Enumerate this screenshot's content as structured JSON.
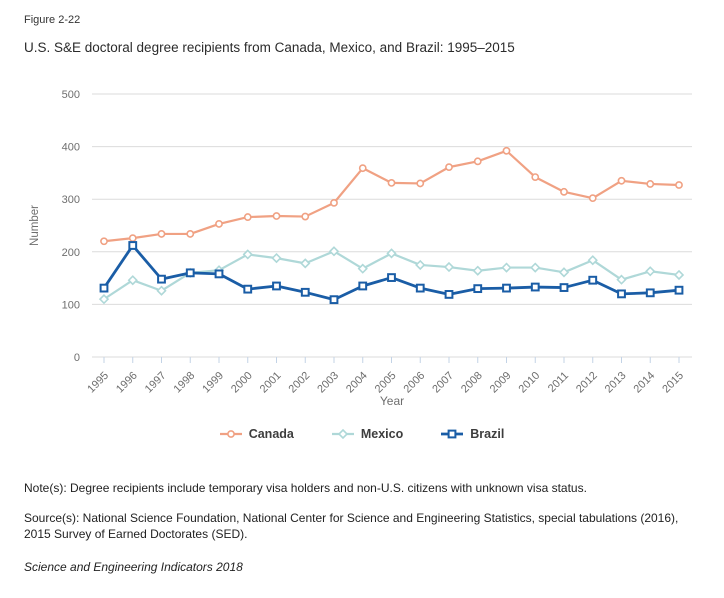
{
  "figure_label": "Figure 2-22",
  "title": "U.S. S&E doctoral degree recipients from Canada, Mexico, and Brazil: 1995–2015",
  "chart_data": {
    "type": "line",
    "x": [
      1995,
      1996,
      1997,
      1998,
      1999,
      2000,
      2001,
      2002,
      2003,
      2004,
      2005,
      2006,
      2007,
      2008,
      2009,
      2010,
      2011,
      2012,
      2013,
      2014,
      2015
    ],
    "series": [
      {
        "name": "Canada",
        "color": "#F0A183",
        "marker": "circle",
        "values": [
          220,
          226,
          234,
          234,
          253,
          266,
          268,
          267,
          293,
          359,
          331,
          330,
          361,
          372,
          392,
          342,
          314,
          302,
          335,
          329,
          327
        ]
      },
      {
        "name": "Mexico",
        "color": "#AFD8D8",
        "marker": "diamond",
        "values": [
          110,
          146,
          126,
          160,
          165,
          195,
          188,
          178,
          201,
          168,
          197,
          175,
          171,
          164,
          170,
          170,
          161,
          184,
          147,
          163,
          156
        ]
      },
      {
        "name": "Brazil",
        "color": "#1A5DA6",
        "marker": "square",
        "values": [
          131,
          212,
          148,
          160,
          158,
          129,
          135,
          123,
          109,
          135,
          151,
          131,
          119,
          130,
          131,
          133,
          132,
          146,
          120,
          122,
          127
        ]
      }
    ],
    "xlabel": "Year",
    "ylabel": "Number",
    "ylim": [
      0,
      500
    ],
    "yticks": [
      0,
      100,
      200,
      300,
      400,
      500
    ],
    "grid": true,
    "legend_position": "bottom"
  },
  "style_colors": {
    "gridline": "#DBDBDB",
    "axis_text": "#6E6E6E",
    "tick_mark": "#C3D3E6",
    "legend_text": "#3D3D3D"
  },
  "footer": {
    "note": "Note(s): Degree recipients include temporary visa holders and non-U.S. citizens with unknown visa status.",
    "source": "Source(s): National Science Foundation, National Center for Science and Engineering Statistics, special tabulations (2016), 2015 Survey of Earned Doctorates (SED).",
    "attribution": "Science and Engineering Indicators 2018"
  }
}
